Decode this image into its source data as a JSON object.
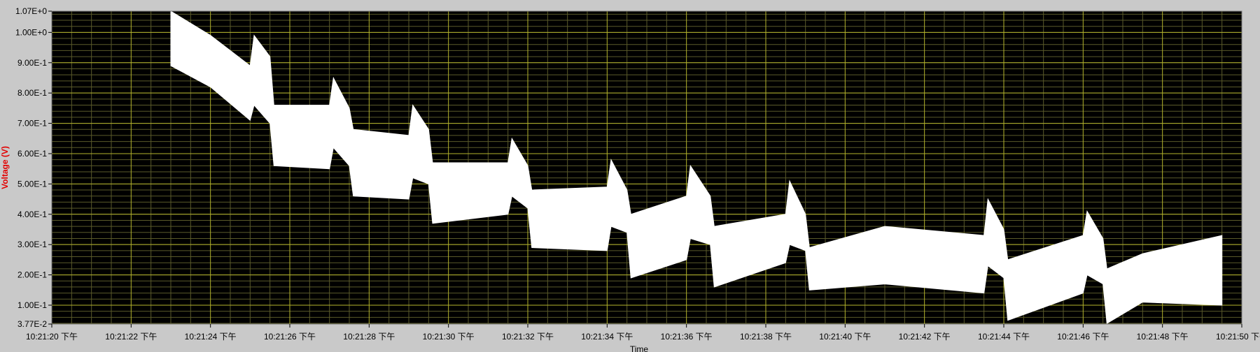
{
  "chart_data": {
    "type": "line",
    "title": "",
    "xlabel": "Time",
    "ylabel": "Voltage (V)",
    "y_scale": "linear",
    "ylim": [
      0.0377,
      1.07
    ],
    "xlim_seconds_of_day": [
      37280,
      37310
    ],
    "grid": true,
    "legend": "none",
    "y_ticks": [
      "1.07E+0",
      "1.00E+0",
      "9.00E-1",
      "8.00E-1",
      "7.00E-1",
      "6.00E-1",
      "5.00E-1",
      "4.00E-1",
      "3.00E-1",
      "2.00E-1",
      "1.00E-1",
      "3.77E-2"
    ],
    "y_tick_values": [
      1.07,
      1.0,
      0.9,
      0.8,
      0.7,
      0.6,
      0.5,
      0.4,
      0.3,
      0.2,
      0.1,
      0.0377
    ],
    "x_ticks": [
      "10:21:20 下午",
      "10:21:22 下午",
      "10:21:24 下午",
      "10:21:26 下午",
      "10:21:28 下午",
      "10:21:30 下午",
      "10:21:32 下午",
      "10:21:34 下午",
      "10:21:36 下午",
      "10:21:38 下午",
      "10:21:40 下午",
      "10:21:42 下午",
      "10:21:44 下午",
      "10:21:46 下午",
      "10:21:48 下午",
      "10:21:50 下午"
    ],
    "series": [
      {
        "color": "#ffffff",
        "envelope": [
          {
            "time": "10:21:23.0",
            "upper": 1.07,
            "lower": 0.89
          },
          {
            "time": "10:21:24.0",
            "upper": 0.99,
            "lower": 0.82
          },
          {
            "time": "10:21:25.0",
            "upper": 0.89,
            "lower": 0.71
          },
          {
            "time": "10:21:25.1",
            "upper": 0.99,
            "lower": 0.76
          },
          {
            "time": "10:21:25.5",
            "upper": 0.92,
            "lower": 0.7
          },
          {
            "time": "10:21:25.6",
            "upper": 0.76,
            "lower": 0.56
          },
          {
            "time": "10:21:27.0",
            "upper": 0.76,
            "lower": 0.55
          },
          {
            "time": "10:21:27.1",
            "upper": 0.85,
            "lower": 0.62
          },
          {
            "time": "10:21:27.5",
            "upper": 0.75,
            "lower": 0.56
          },
          {
            "time": "10:21:27.6",
            "upper": 0.68,
            "lower": 0.46
          },
          {
            "time": "10:21:29.0",
            "upper": 0.66,
            "lower": 0.45
          },
          {
            "time": "10:21:29.1",
            "upper": 0.76,
            "lower": 0.52
          },
          {
            "time": "10:21:29.5",
            "upper": 0.68,
            "lower": 0.5
          },
          {
            "time": "10:21:29.6",
            "upper": 0.57,
            "lower": 0.37
          },
          {
            "time": "10:21:31.5",
            "upper": 0.57,
            "lower": 0.4
          },
          {
            "time": "10:21:31.6",
            "upper": 0.65,
            "lower": 0.46
          },
          {
            "time": "10:21:32.0",
            "upper": 0.56,
            "lower": 0.42
          },
          {
            "time": "10:21:32.1",
            "upper": 0.48,
            "lower": 0.29
          },
          {
            "time": "10:21:34.0",
            "upper": 0.49,
            "lower": 0.28
          },
          {
            "time": "10:21:34.1",
            "upper": 0.58,
            "lower": 0.36
          },
          {
            "time": "10:21:34.5",
            "upper": 0.48,
            "lower": 0.34
          },
          {
            "time": "10:21:34.6",
            "upper": 0.4,
            "lower": 0.19
          },
          {
            "time": "10:21:36.0",
            "upper": 0.46,
            "lower": 0.25
          },
          {
            "time": "10:21:36.1",
            "upper": 0.56,
            "lower": 0.32
          },
          {
            "time": "10:21:36.6",
            "upper": 0.46,
            "lower": 0.3
          },
          {
            "time": "10:21:36.7",
            "upper": 0.36,
            "lower": 0.16
          },
          {
            "time": "10:21:38.5",
            "upper": 0.4,
            "lower": 0.24
          },
          {
            "time": "10:21:38.6",
            "upper": 0.51,
            "lower": 0.3
          },
          {
            "time": "10:21:39.0",
            "upper": 0.4,
            "lower": 0.28
          },
          {
            "time": "10:21:39.1",
            "upper": 0.29,
            "lower": 0.15
          },
          {
            "time": "10:21:41.0",
            "upper": 0.36,
            "lower": 0.17
          },
          {
            "time": "10:21:43.5",
            "upper": 0.33,
            "lower": 0.14
          },
          {
            "time": "10:21:43.6",
            "upper": 0.45,
            "lower": 0.23
          },
          {
            "time": "10:21:44.0",
            "upper": 0.35,
            "lower": 0.19
          },
          {
            "time": "10:21:44.1",
            "upper": 0.25,
            "lower": 0.05
          },
          {
            "time": "10:21:46.0",
            "upper": 0.33,
            "lower": 0.14
          },
          {
            "time": "10:21:46.1",
            "upper": 0.41,
            "lower": 0.2
          },
          {
            "time": "10:21:46.5",
            "upper": 0.32,
            "lower": 0.17
          },
          {
            "time": "10:21:46.6",
            "upper": 0.22,
            "lower": 0.04
          },
          {
            "time": "10:21:47.5",
            "upper": 0.27,
            "lower": 0.11
          },
          {
            "time": "10:21:49.5",
            "upper": 0.33,
            "lower": 0.1
          }
        ]
      }
    ]
  }
}
